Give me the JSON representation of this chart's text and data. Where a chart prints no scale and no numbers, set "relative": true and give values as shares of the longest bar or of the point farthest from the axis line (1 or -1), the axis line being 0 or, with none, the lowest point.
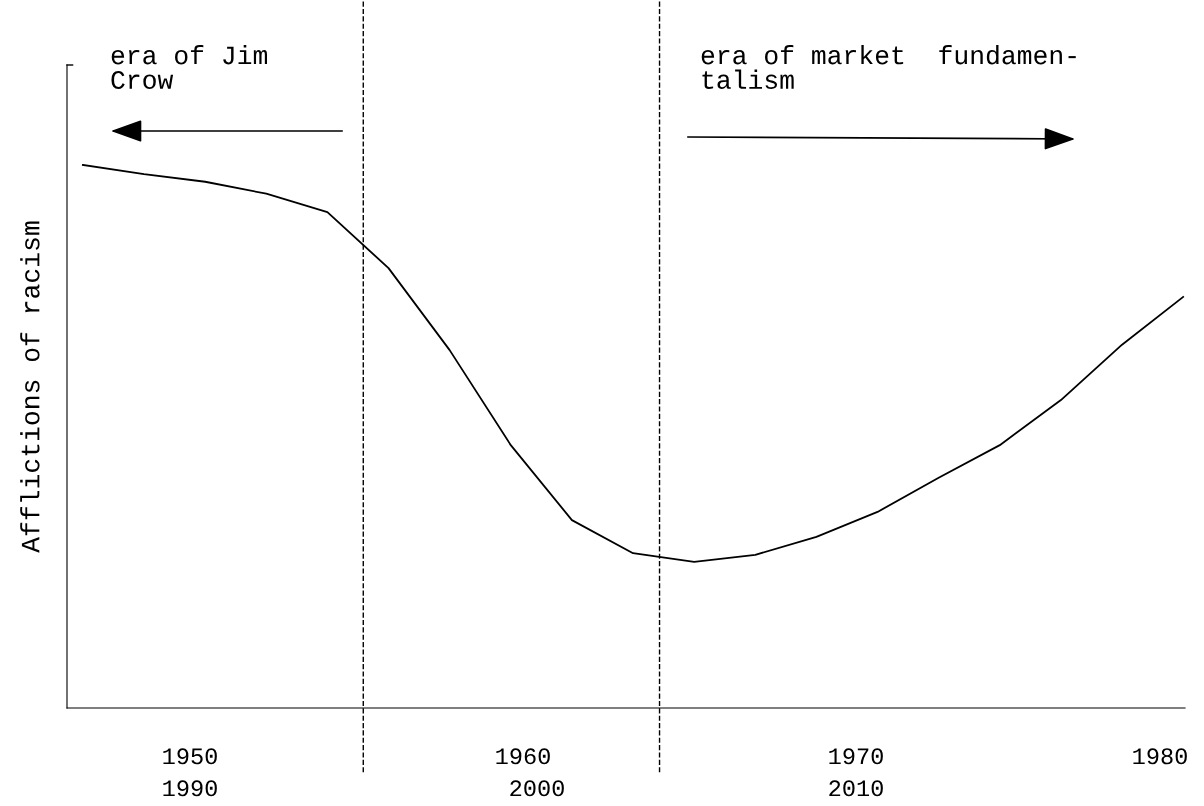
{
  "chart_data": {
    "type": "line",
    "relative": true,
    "ylabel": "Afflictions of racism",
    "categories": [
      null,
      null,
      null,
      null,
      null,
      null,
      null,
      null,
      null,
      null,
      null,
      null,
      null,
      null,
      null,
      null,
      null,
      null,
      null
    ],
    "series": [
      {
        "color": "#000000",
        "values": [
          1,
          0.983,
          0.969,
          0.947,
          0.913,
          0.81,
          0.659,
          0.484,
          0.346,
          0.285,
          0.269,
          0.282,
          0.315,
          0.361,
          0.424,
          0.484,
          0.567,
          0.669,
          0.757
        ]
      }
    ],
    "annotations": [
      "era of Jim\nCrow",
      "era of market  fundamen-\ntalism",
      "1950",
      "1960",
      "1970",
      "1980",
      "1990",
      "2000",
      "2010"
    ],
    "marker": "none",
    "line_style": "solid"
  }
}
